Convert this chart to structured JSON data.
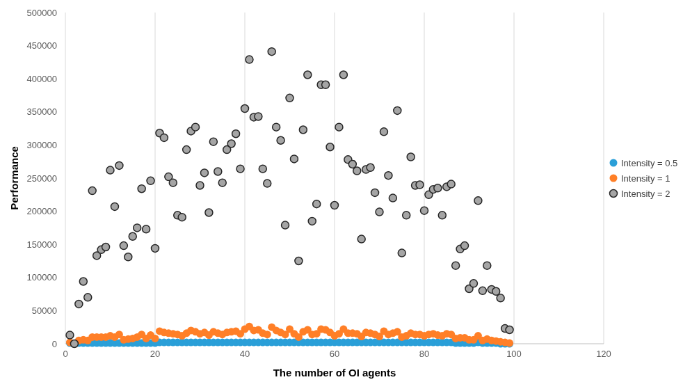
{
  "chart_data": {
    "type": "scatter",
    "xlabel": "The number of OI agents",
    "ylabel": "Performance",
    "x": [
      1,
      2,
      3,
      4,
      5,
      6,
      7,
      8,
      9,
      10,
      11,
      12,
      13,
      14,
      15,
      16,
      17,
      18,
      19,
      20,
      21,
      22,
      23,
      24,
      25,
      26,
      27,
      28,
      29,
      30,
      31,
      32,
      33,
      34,
      35,
      36,
      37,
      38,
      39,
      40,
      41,
      42,
      43,
      44,
      45,
      46,
      47,
      48,
      49,
      50,
      51,
      52,
      53,
      54,
      55,
      56,
      57,
      58,
      59,
      60,
      61,
      62,
      63,
      64,
      65,
      66,
      67,
      68,
      69,
      70,
      71,
      72,
      73,
      74,
      75,
      76,
      77,
      78,
      79,
      80,
      81,
      82,
      83,
      84,
      85,
      86,
      87,
      88,
      89,
      90,
      91,
      92,
      93,
      94,
      95,
      96,
      97,
      98,
      99
    ],
    "xlim": [
      0,
      120
    ],
    "xticks": [
      0,
      20,
      40,
      60,
      80,
      100,
      120
    ],
    "ylim": [
      0,
      500000
    ],
    "yticks": [
      0,
      50000,
      100000,
      150000,
      200000,
      250000,
      300000,
      350000,
      400000,
      450000,
      500000
    ],
    "grid": "x",
    "legend": "right",
    "marker": "circle",
    "series": [
      {
        "name": "Intensity = 0.5",
        "color": "#2a9fd8",
        "values": [
          1000,
          null,
          1000,
          1000,
          1000,
          1000,
          1000,
          1000,
          1000,
          1000,
          1000,
          1000,
          1000,
          1000,
          1000,
          1000,
          1000,
          1000,
          1000,
          1000,
          2000,
          2000,
          2000,
          2000,
          2000,
          2000,
          2000,
          2000,
          2000,
          2000,
          2000,
          2000,
          2000,
          2000,
          2000,
          2000,
          2000,
          2000,
          2000,
          2000,
          2000,
          2000,
          2000,
          2000,
          2000,
          2000,
          2000,
          2000,
          2000,
          2000,
          2000,
          2000,
          2000,
          2000,
          2000,
          2000,
          2000,
          2000,
          2000,
          2000,
          2000,
          2000,
          2000,
          2000,
          2000,
          2000,
          2000,
          2000,
          2000,
          2000,
          2000,
          2000,
          2000,
          2000,
          2000,
          2000,
          2000,
          2000,
          2000,
          2000,
          2000,
          2000,
          2000,
          2000,
          2000,
          2000,
          1000,
          1000,
          1000,
          1000,
          1000,
          2000,
          1000,
          1000,
          1000,
          1000,
          0,
          0,
          0
        ]
      },
      {
        "name": "Intensity = 1",
        "color": "#ff7f27",
        "values": [
          2000,
          null,
          5000,
          6000,
          5000,
          10000,
          10000,
          10000,
          10000,
          12000,
          10000,
          14000,
          6000,
          7000,
          8000,
          10000,
          14000,
          8000,
          13000,
          8000,
          19000,
          17000,
          16000,
          15000,
          14000,
          12000,
          16000,
          20000,
          18000,
          15000,
          17000,
          13000,
          18000,
          16000,
          14000,
          17000,
          18000,
          19000,
          15000,
          22000,
          26000,
          20000,
          21000,
          16000,
          14000,
          25000,
          20000,
          17000,
          14000,
          22000,
          15000,
          10000,
          18000,
          21000,
          14000,
          15000,
          22000,
          21000,
          17000,
          12000,
          15000,
          22000,
          16000,
          16000,
          15000,
          11000,
          17000,
          16000,
          14000,
          11000,
          19000,
          14000,
          16000,
          18000,
          10000,
          12000,
          16000,
          14000,
          14000,
          12000,
          14000,
          15000,
          13000,
          12000,
          15000,
          14000,
          8000,
          9000,
          9000,
          6000,
          6000,
          12000,
          5000,
          7000,
          5000,
          4000,
          3000,
          2000,
          1000
        ]
      },
      {
        "name": "Intensity = 2",
        "color": "#a5a5a5",
        "values": [
          13000,
          0,
          60000,
          94000,
          70000,
          231000,
          133000,
          142000,
          146000,
          262000,
          207000,
          269000,
          148000,
          131000,
          162000,
          175000,
          234000,
          173000,
          246000,
          144000,
          318000,
          311000,
          252000,
          243000,
          194000,
          191000,
          293000,
          321000,
          327000,
          239000,
          258000,
          198000,
          305000,
          260000,
          243000,
          293000,
          302000,
          317000,
          264000,
          355000,
          429000,
          342000,
          343000,
          264000,
          242000,
          441000,
          327000,
          307000,
          179000,
          371000,
          279000,
          125000,
          323000,
          406000,
          185000,
          211000,
          391000,
          391000,
          297000,
          209000,
          327000,
          406000,
          278000,
          271000,
          261000,
          158000,
          263000,
          266000,
          228000,
          199000,
          320000,
          254000,
          220000,
          352000,
          137000,
          194000,
          282000,
          239000,
          240000,
          201000,
          225000,
          233000,
          235000,
          194000,
          237000,
          241000,
          118000,
          143000,
          148000,
          83000,
          91000,
          216000,
          80000,
          118000,
          82000,
          79000,
          69000,
          23000,
          21000
        ]
      }
    ]
  }
}
